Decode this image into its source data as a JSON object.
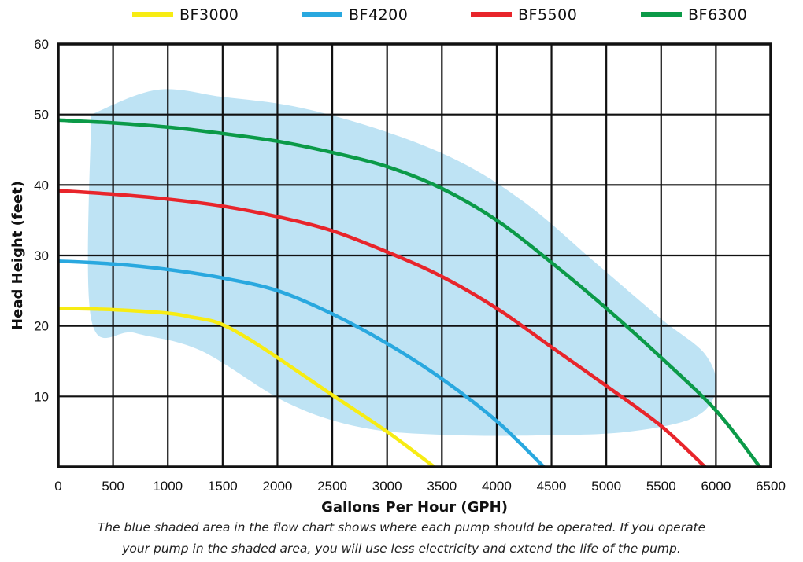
{
  "chart_data": {
    "type": "line",
    "xlabel": "Gallons Per Hour (GPH)",
    "ylabel": "Head Height (feet)",
    "xlim": [
      0,
      6500
    ],
    "ylim": [
      0,
      60
    ],
    "xticks": [
      0,
      500,
      1000,
      1500,
      2000,
      2500,
      3000,
      3500,
      4000,
      4500,
      5000,
      5500,
      6000,
      6500
    ],
    "xtick_labels": [
      "0",
      "500",
      "1000",
      "1500",
      "2000",
      "2500",
      "3000",
      "3500",
      "4000",
      "4500",
      "5000",
      "5500",
      "6000",
      "6500"
    ],
    "yticks": [
      10,
      20,
      30,
      40,
      50,
      60
    ],
    "ytick_labels": [
      "10",
      "20",
      "30",
      "40",
      "50",
      "60"
    ],
    "grid": true,
    "legend_position": "top",
    "shaded_region": {
      "description": "recommended operating area",
      "color": "#bee3f4",
      "x": [
        300,
        900,
        1500,
        2200,
        3000,
        3700,
        4300,
        4900,
        5500,
        5900,
        6000,
        5800,
        5200,
        4500,
        3600,
        2800,
        2100,
        1300,
        700,
        300,
        300
      ],
      "y": [
        50,
        53.5,
        52.5,
        51,
        47.5,
        43,
        37,
        29,
        21,
        16,
        11,
        7,
        5,
        4.5,
        4.5,
        5.5,
        9,
        16.5,
        19,
        21,
        50
      ]
    },
    "series": [
      {
        "name": "BF3000",
        "color": "#f7ec13",
        "x": [
          0,
          500,
          1000,
          1200,
          1450,
          1700,
          2000,
          2500,
          3000,
          3430
        ],
        "y": [
          22.5,
          22.3,
          21.8,
          21.3,
          20.5,
          18.5,
          15.5,
          10.2,
          5,
          0
        ]
      },
      {
        "name": "BF4200",
        "color": "#29a8df",
        "x": [
          0,
          500,
          1000,
          1500,
          2000,
          2500,
          3000,
          3500,
          4000,
          4430
        ],
        "y": [
          29.2,
          28.8,
          28.0,
          26.8,
          25,
          21.7,
          17.5,
          12.5,
          6.5,
          0
        ]
      },
      {
        "name": "BF5500",
        "color": "#e8252b",
        "x": [
          0,
          500,
          1000,
          1500,
          2000,
          2500,
          3000,
          3500,
          4000,
          4500,
          5000,
          5500,
          5900
        ],
        "y": [
          39.2,
          38.7,
          38.0,
          37.0,
          35.5,
          33.5,
          30.5,
          27,
          22.5,
          17,
          11.5,
          5.8,
          0
        ]
      },
      {
        "name": "BF6300",
        "color": "#0b9a48",
        "x": [
          0,
          500,
          1000,
          1500,
          2000,
          2500,
          3000,
          3500,
          4000,
          4500,
          5000,
          5500,
          6000,
          6400
        ],
        "y": [
          49.2,
          48.8,
          48.2,
          47.3,
          46.2,
          44.6,
          42.6,
          39.5,
          35,
          29,
          22.5,
          15.5,
          8,
          0
        ]
      }
    ],
    "caption": [
      "The blue shaded area in the flow chart shows where each pump should be operated. If you operate",
      "your pump in the shaded area, you will use less electricity and extend the life of the pump."
    ]
  }
}
